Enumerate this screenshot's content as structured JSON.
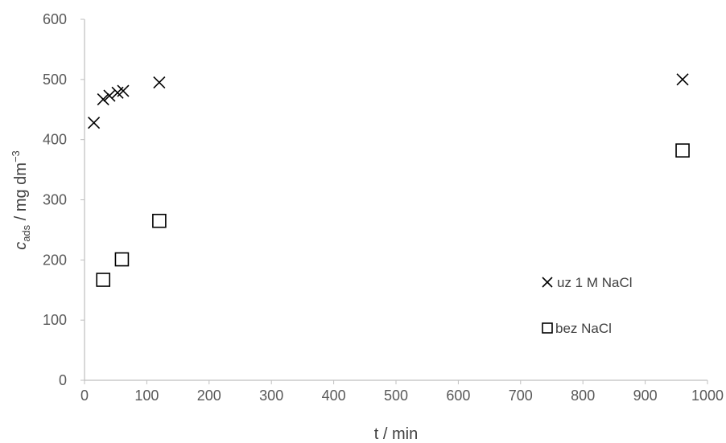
{
  "chart_data": {
    "type": "scatter",
    "title": "",
    "xlabel": "t / min",
    "ylabel": {
      "symbol": "c",
      "subscript": "ads",
      "rest": " / mg dm",
      "superscript": "−3"
    },
    "xlim": [
      0,
      1000
    ],
    "ylim": [
      0,
      600
    ],
    "x_ticks": [
      "0",
      "100",
      "200",
      "300",
      "400",
      "500",
      "600",
      "700",
      "800",
      "900",
      "1000"
    ],
    "y_ticks": [
      "0",
      "100",
      "200",
      "300",
      "400",
      "500",
      "600"
    ],
    "grid": false,
    "legend_position": "right",
    "series": [
      {
        "name": "uz 1 M NaCl",
        "marker": "x",
        "color": "#000000",
        "points": [
          {
            "x": 15,
            "y": 428
          },
          {
            "x": 30,
            "y": 467
          },
          {
            "x": 40,
            "y": 473
          },
          {
            "x": 53,
            "y": 478
          },
          {
            "x": 62,
            "y": 481
          },
          {
            "x": 120,
            "y": 495
          },
          {
            "x": 960,
            "y": 500
          }
        ]
      },
      {
        "name": "bez NaCl",
        "marker": "square",
        "color": "#000000",
        "points": [
          {
            "x": 30,
            "y": 167
          },
          {
            "x": 60,
            "y": 201
          },
          {
            "x": 120,
            "y": 265
          },
          {
            "x": 960,
            "y": 382
          }
        ]
      }
    ]
  }
}
